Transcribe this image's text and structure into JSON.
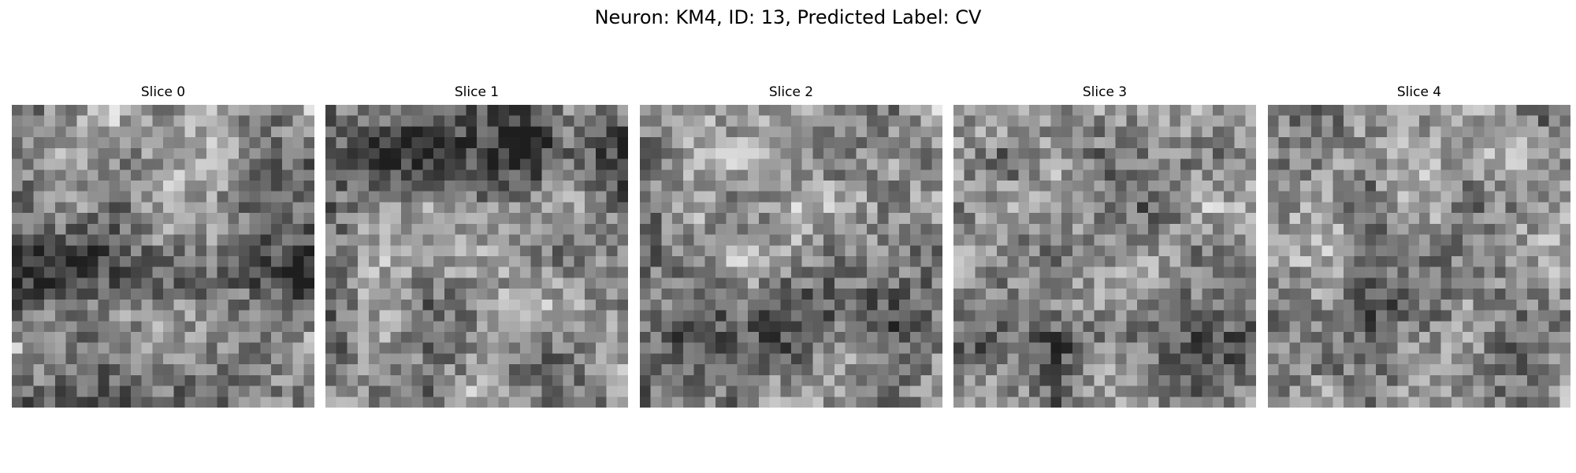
{
  "figure": {
    "title": "Neuron: KM4, ID: 13, Predicted Label: CV",
    "colormap": "gray",
    "grid_cells_per_side": 28,
    "panels": [
      {
        "title": "Slice 0",
        "seed": 101,
        "dark_band_center": 0.55,
        "dark_band_strength": 0.35
      },
      {
        "title": "Slice 1",
        "seed": 202,
        "dark_band_center": 0.15,
        "dark_band_strength": 0.3
      },
      {
        "title": "Slice 2",
        "seed": 303,
        "dark_band_center": 0.75,
        "dark_band_strength": 0.15
      },
      {
        "title": "Slice 3",
        "seed": 404,
        "dark_band_center": 0.8,
        "dark_band_strength": 0.25
      },
      {
        "title": "Slice 4",
        "seed": 505,
        "dark_band_center": 0.65,
        "dark_band_strength": 0.15
      }
    ]
  }
}
